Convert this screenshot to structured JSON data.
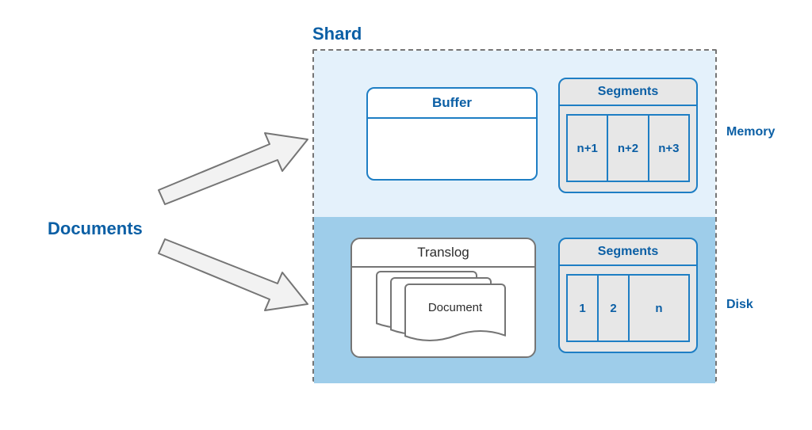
{
  "colors": {
    "text_primary": "#0b5fa5",
    "border_gray": "#757575",
    "border_blue": "#1e7ec4",
    "memory_bg": "#e4f1fb",
    "disk_bg": "#9ecdea",
    "segment_fill": "#e7e7e7",
    "buffer_fill": "#ffffff",
    "white": "#ffffff",
    "black": "#2d2d2d"
  },
  "labels": {
    "documents": "Documents",
    "shard": "Shard",
    "memory": "Memory",
    "disk": "Disk"
  },
  "memory": {
    "buffer_title": "Buffer",
    "segments_title": "Segments",
    "segments": [
      "n+1",
      "n+2",
      "n+3"
    ]
  },
  "diskzone": {
    "translog_title": "Translog",
    "document_label": "Document",
    "segments_title": "Segments",
    "segments": [
      "1",
      "2",
      "n"
    ]
  },
  "arrows": {
    "stroke": "#757575",
    "fill": "#f2f2f2",
    "stroke_width": 2
  }
}
